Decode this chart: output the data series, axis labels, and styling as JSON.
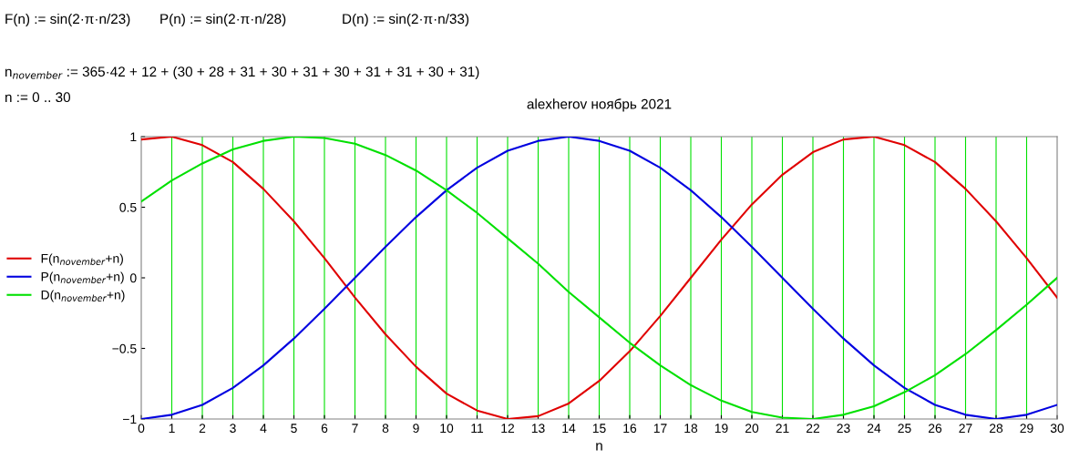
{
  "chart_data": {
    "type": "line",
    "title": "alexherov ноябрь 2021",
    "xlabel": "n",
    "annotations": [
      "F(n) := sin(2·π·n/23)",
      "P(n) := sin(2·π·n/28)",
      "D(n) := sin(2·π·n/33)",
      "n$_{november}$ := 365·42 + 12 + (30 + 28 + 31 + 30 + 31 + 30 + 31 + 31 + 30 + 31)",
      "n := 0 .. 30"
    ],
    "x": [
      0,
      1,
      2,
      3,
      4,
      5,
      6,
      7,
      8,
      9,
      10,
      11,
      12,
      13,
      14,
      15,
      16,
      17,
      18,
      19,
      20,
      21,
      22,
      23,
      24,
      25,
      26,
      27,
      28,
      29,
      30
    ],
    "series": [
      {
        "name": "F(n$_{november}$+n)",
        "color": "#e00000",
        "values": [
          0.98,
          1.0,
          0.94,
          0.82,
          0.63,
          0.4,
          0.14,
          -0.14,
          -0.4,
          -0.63,
          -0.82,
          -0.94,
          -1.0,
          -0.98,
          -0.89,
          -0.73,
          -0.52,
          -0.27,
          0,
          0.27,
          0.52,
          0.73,
          0.89,
          0.98,
          1.0,
          0.94,
          0.82,
          0.63,
          0.4,
          0.14,
          -0.14
        ]
      },
      {
        "name": "P(n$_{november}$+n)",
        "color": "#0000e0",
        "values": [
          -1.0,
          -0.97,
          -0.9,
          -0.78,
          -0.62,
          -0.43,
          -0.22,
          0,
          0.22,
          0.43,
          0.62,
          0.78,
          0.9,
          0.97,
          1.0,
          0.97,
          0.9,
          0.78,
          0.62,
          0.43,
          0.22,
          0,
          -0.22,
          -0.43,
          -0.62,
          -0.78,
          -0.9,
          -0.97,
          -1.0,
          -0.97,
          -0.9
        ]
      },
      {
        "name": "D(n$_{november}$+n)",
        "color": "#00e000",
        "values": [
          0.54,
          0.69,
          0.81,
          0.91,
          0.97,
          1.0,
          0.99,
          0.95,
          0.87,
          0.76,
          0.62,
          0.46,
          0.28,
          0.1,
          -0.1,
          -0.28,
          -0.46,
          -0.62,
          -0.76,
          -0.87,
          -0.95,
          -0.99,
          -1.0,
          -0.97,
          -0.91,
          -0.81,
          -0.69,
          -0.54,
          -0.37,
          -0.19,
          0
        ]
      }
    ],
    "xlim": [
      0,
      30
    ],
    "xticks": [
      0,
      1,
      2,
      3,
      4,
      5,
      6,
      7,
      8,
      9,
      10,
      11,
      12,
      13,
      14,
      15,
      16,
      17,
      18,
      19,
      20,
      21,
      22,
      23,
      24,
      25,
      26,
      27,
      28,
      29,
      30
    ],
    "ylim": [
      -1,
      1
    ],
    "yticks": [
      {
        "value": -1,
        "label": "−1"
      },
      {
        "value": -0.5,
        "label": "−0.5"
      },
      0,
      0.5,
      1
    ],
    "grid": "x",
    "legend": "left",
    "marker": "none",
    "line_style": "solid"
  }
}
